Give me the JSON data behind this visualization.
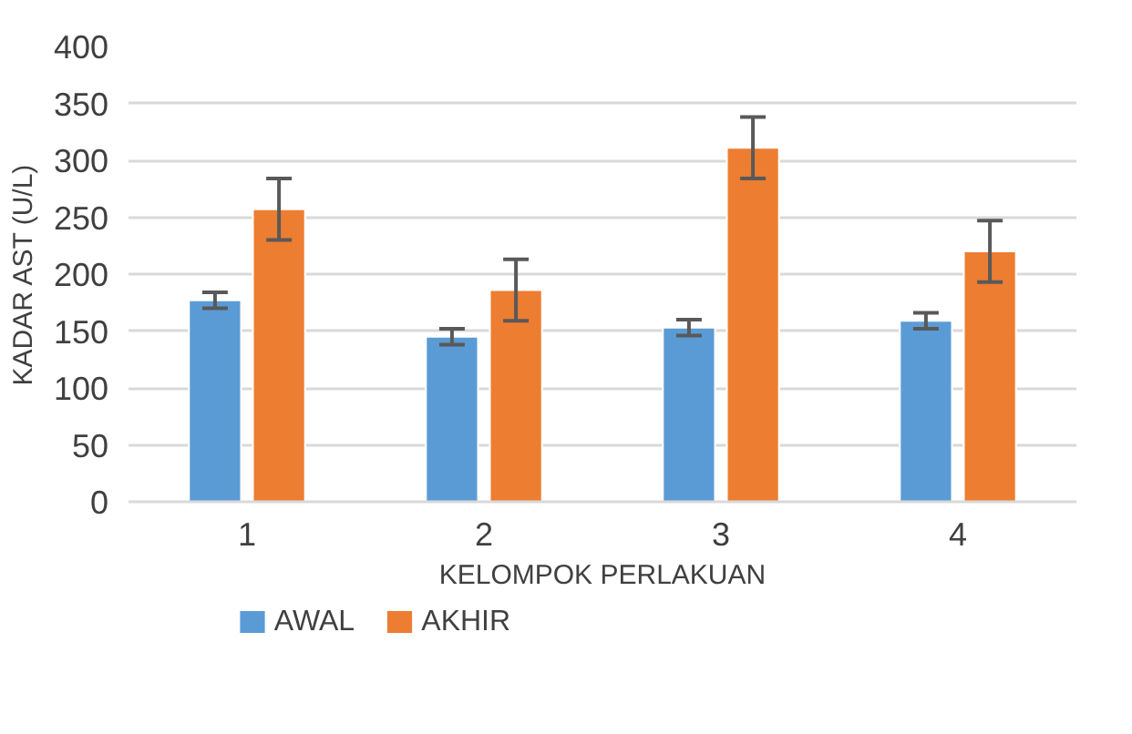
{
  "chart_data": {
    "type": "bar",
    "xlabel": "KELOMPOK PERLAKUAN",
    "ylabel": "KADAR AST (U/L)",
    "categories": [
      "1",
      "2",
      "3",
      "4"
    ],
    "series": [
      {
        "name": "AWAL",
        "color": "#5b9bd5",
        "values": [
          177,
          145,
          153,
          159
        ],
        "errors": [
          7,
          7,
          7,
          7
        ]
      },
      {
        "name": "AKHIR",
        "color": "#ed7d31",
        "values": [
          257,
          186,
          311,
          220
        ],
        "errors": [
          27,
          27,
          27,
          27
        ]
      }
    ],
    "ylim": [
      0,
      400
    ],
    "yticks": [
      0,
      50,
      100,
      150,
      200,
      250,
      300,
      350,
      400
    ],
    "grid": "y",
    "legend": "bottom"
  }
}
